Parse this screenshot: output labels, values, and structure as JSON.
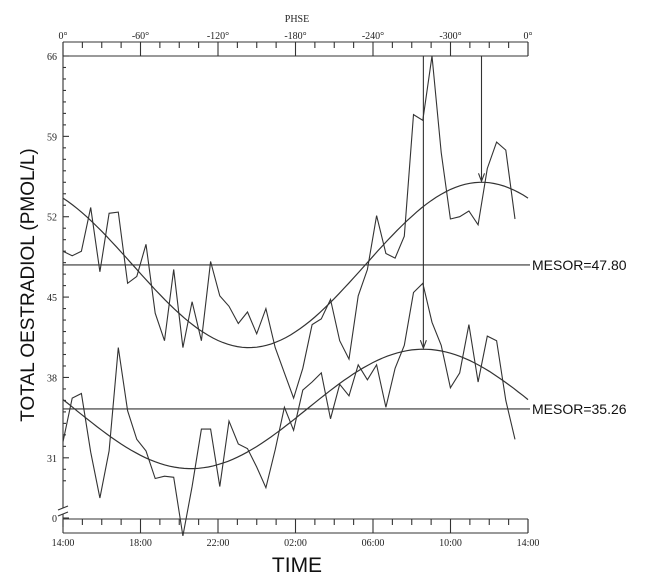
{
  "chart_data": {
    "type": "line",
    "top_axis": {
      "label": "PHSE",
      "tick_labels": [
        "0°",
        "-60°",
        "-120°",
        "-180°",
        "-240°",
        "-300°",
        "0°"
      ]
    },
    "x_axis": {
      "label": "TIME",
      "tick_labels": [
        "14:00",
        "18:00",
        "22:00",
        "02:00",
        "06:00",
        "10:00",
        "14:00"
      ]
    },
    "y_axis": {
      "label": "TOTAL OESTRADIOL (PMOL/L)",
      "tick_labels": [
        "0",
        "31",
        "38",
        "45",
        "52",
        "59",
        "66"
      ],
      "broken": true
    },
    "series": [
      {
        "values": [
          49,
          48.6,
          49,
          52.8,
          47.2,
          52.3,
          52.4,
          46.2,
          46.8,
          49.6,
          43.6,
          41.2,
          47.4,
          40.6,
          44.6,
          41.2,
          48.1,
          45.1,
          44.2,
          42.7,
          43.7,
          41.8,
          44,
          40.6,
          38.4,
          36.2,
          38.8,
          42.6,
          43.1,
          44.8,
          41.2,
          39.6,
          45.1,
          47.4,
          52.1,
          48.8,
          48.4,
          50.3,
          60.9,
          60.4,
          66,
          57.6,
          51.8,
          52,
          52.5,
          51.3,
          56.2,
          58.5,
          57.8,
          51.8
        ]
      },
      {
        "values": [
          32.4,
          36.2,
          36.6,
          31.5,
          27.5,
          31.6,
          40.6,
          35.1,
          32.6,
          31.6,
          29.2,
          29.4,
          29.3,
          24.2,
          28.5,
          33.5,
          33.5,
          28.5,
          34.2,
          32.2,
          31.8,
          30.2,
          28.4,
          31.7,
          35.4,
          33.4,
          36.9,
          37.6,
          38.4,
          34.4,
          37.4,
          36.4,
          39.1,
          37.8,
          39.1,
          35.4,
          38.8,
          40.8,
          45.4,
          46.2,
          42.8,
          40.8,
          37.1,
          38.4,
          42.6,
          37.6,
          41.6,
          41.2,
          36,
          32.6
        ]
      }
    ],
    "cosinor_fits": [
      {
        "mesor_label": "MESOR=47.80",
        "mesor": 47.8,
        "acrophase_hour": 11.6
      },
      {
        "mesor_label": "MESOR=35.26",
        "mesor": 35.26,
        "acrophase_hour": 8.6
      }
    ]
  }
}
